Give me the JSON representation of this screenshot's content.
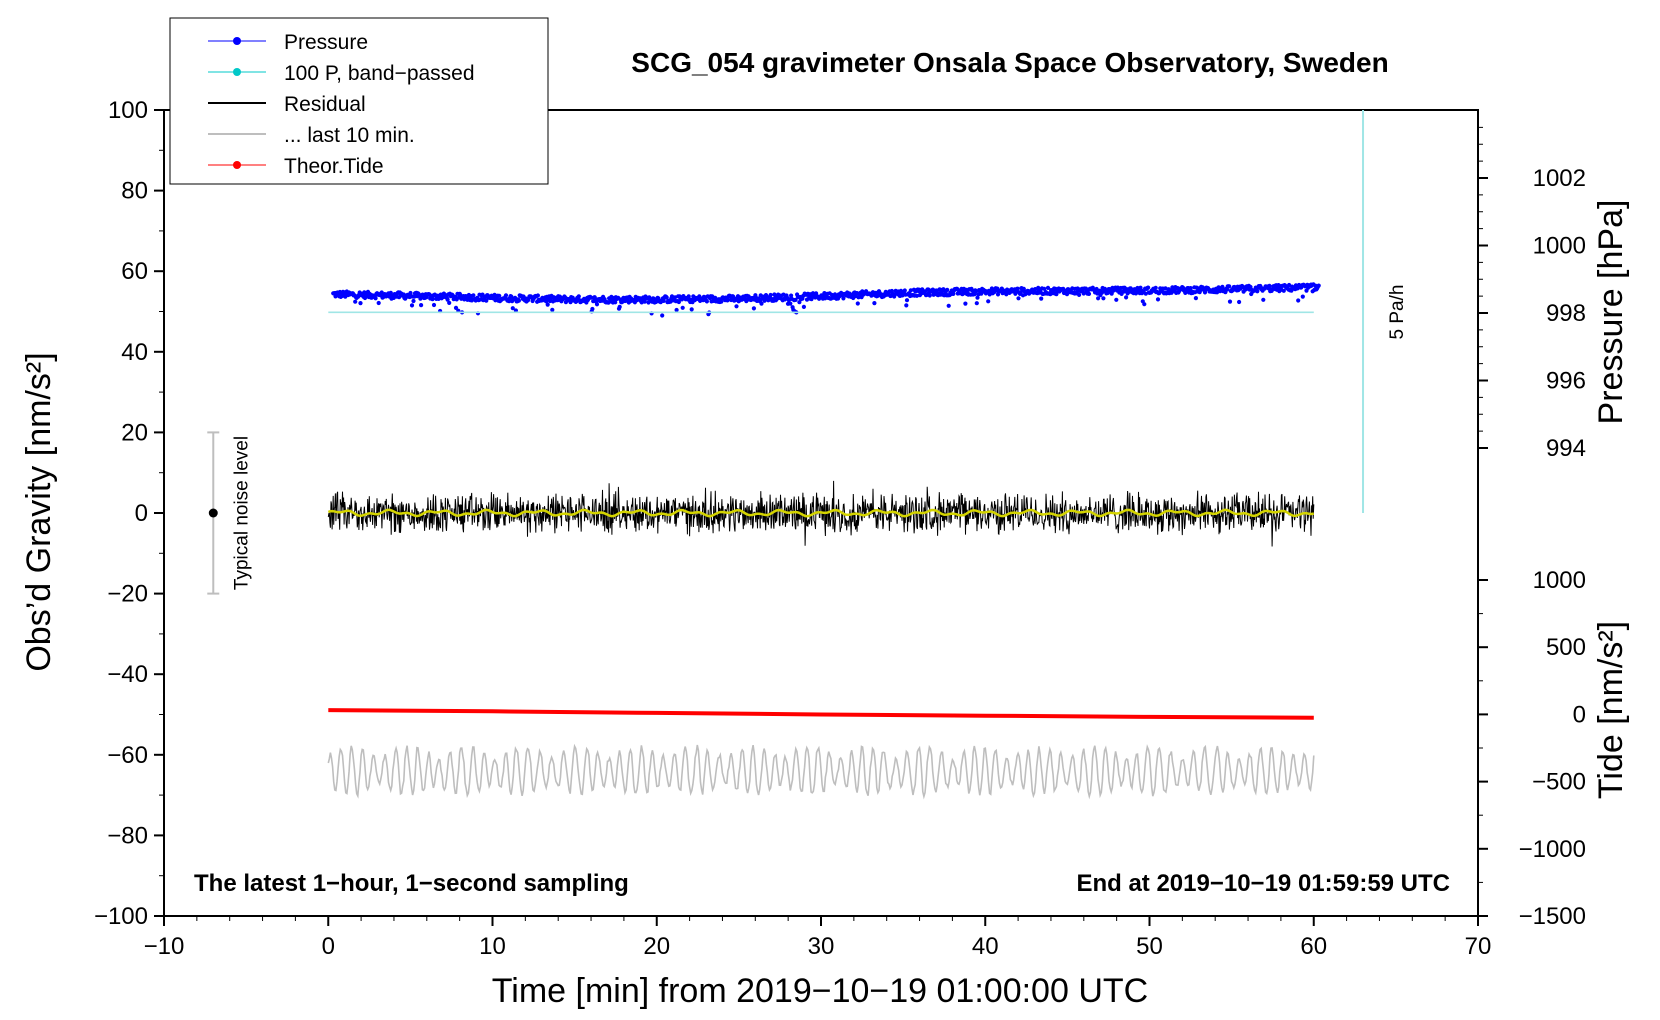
{
  "chart_data": {
    "type": "scatter",
    "title": "SCG_054 gravimeter Onsala Space Observatory, Sweden",
    "xlabel": "Time [min] from 2019−10−19 01:00:00 UTC",
    "ylabel_main": "Obs’d Gravity [nm/s²]",
    "ylabel_pressure": "Pressure [hPa]",
    "ylabel_tide": "Tide [nm/s²]",
    "footnote_left": "The latest 1−hour, 1−second sampling",
    "footnote_right": "End at 2019−10−19 01:59:59 UTC",
    "xlim": [
      -10,
      70
    ],
    "ylim": [
      -100,
      100
    ],
    "pressure_lim": [
      994,
      1002
    ],
    "tide_lim": [
      -1500,
      1000
    ],
    "x_ticks": [
      -10,
      0,
      10,
      20,
      30,
      40,
      50,
      60,
      70
    ],
    "x_tick_labels": [
      "−10",
      "0",
      "10",
      "20",
      "30",
      "40",
      "50",
      "60",
      "70"
    ],
    "y_ticks": [
      -100,
      -80,
      -60,
      -40,
      -20,
      0,
      20,
      40,
      60,
      80,
      100
    ],
    "y_tick_labels": [
      "−100",
      "−80",
      "−60",
      "−40",
      "−20",
      "0",
      "20",
      "40",
      "60",
      "80",
      "100"
    ],
    "pressure_ticks": [
      994,
      996,
      998,
      1000,
      1002
    ],
    "pressure_tick_labels": [
      "994",
      "996",
      "998",
      "1000",
      "1002"
    ],
    "tide_ticks": [
      -1500,
      -1000,
      -500,
      0,
      500,
      1000
    ],
    "tide_tick_labels": [
      "−1500",
      "−1000",
      "−500",
      "0",
      "500",
      "1000"
    ],
    "legend": {
      "placement": "top-left",
      "entries": [
        {
          "label": "Pressure",
          "color": "#0000ff",
          "marker": true
        },
        {
          "label": "100 P, band−passed",
          "color": "#00c8c8",
          "marker": true
        },
        {
          "label": "Residual",
          "color": "#000000",
          "marker": false
        },
        {
          "label": "... last 10 min.",
          "color": "#bebebe",
          "marker": false
        },
        {
          "label": "Theor.Tide",
          "color": "#ff0000",
          "marker": true
        }
      ]
    },
    "noise_bar": {
      "x": -7,
      "y": 0,
      "half_range": 20,
      "label": "Typical noise level"
    },
    "pressure_rate": {
      "label": "5 Pa/h",
      "x": 63,
      "y_from": 0,
      "y_to": 100
    },
    "series": [
      {
        "name": "Pressure",
        "color": "#0000ff",
        "style": "dots",
        "x": [
          0,
          5,
          10,
          15,
          20,
          25,
          30,
          35,
          40,
          45,
          50,
          55,
          60
        ],
        "y": [
          54.3,
          53.9,
          53.4,
          53.0,
          53.0,
          53.2,
          53.8,
          54.6,
          55.0,
          55.1,
          55.2,
          55.5,
          56.0
        ]
      },
      {
        "name": "100 P, band−passed",
        "color": "#a0e6e6",
        "style": "line",
        "x": [
          0,
          60
        ],
        "y": [
          49.8,
          49.8
        ]
      },
      {
        "name": "Residual",
        "color": "#000000",
        "style": "noise",
        "x_range": [
          0,
          60
        ],
        "center": 0,
        "amplitude": 5
      },
      {
        "name": "Residual smoothed",
        "color": "#d4d400",
        "style": "smooth",
        "x_range": [
          0,
          60
        ],
        "center": 0,
        "amplitude": 0.8
      },
      {
        "name": "... last 10 min.",
        "color": "#bebebe",
        "style": "wave",
        "x_range": [
          0,
          60
        ],
        "center": -64,
        "amplitude": 6
      },
      {
        "name": "Theor.Tide",
        "color": "#ff0000",
        "style": "line",
        "x": [
          0,
          10,
          20,
          30,
          40,
          50,
          60
        ],
        "y": [
          -48.9,
          -49.2,
          -49.6,
          -50.0,
          -50.3,
          -50.6,
          -50.8
        ]
      }
    ]
  }
}
